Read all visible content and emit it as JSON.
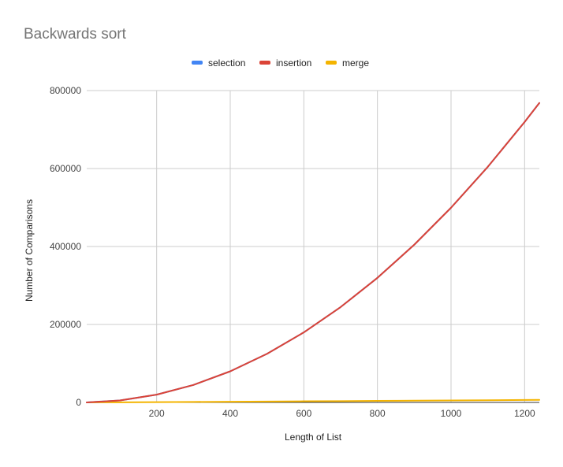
{
  "chart_data": {
    "type": "line",
    "title": "Backwards sort",
    "xlabel": "Length of List",
    "ylabel": "Number of Comparisons",
    "xlim": [
      10,
      1240
    ],
    "ylim": [
      0,
      800000
    ],
    "x_ticks": [
      200,
      400,
      600,
      800,
      1000,
      1200
    ],
    "x_tick_labels": [
      "200",
      "400",
      "600",
      "800",
      "1000",
      "1200"
    ],
    "y_ticks": [
      0,
      200000,
      400000,
      600000,
      800000
    ],
    "y_tick_labels": [
      "0",
      "200000",
      "400000",
      "600000",
      "800000"
    ],
    "grid": true,
    "legend_position": "top",
    "x": [
      10,
      100,
      200,
      300,
      400,
      500,
      600,
      700,
      800,
      900,
      1000,
      1100,
      1200,
      1240
    ],
    "series": [
      {
        "name": "selection",
        "color": "#4285f4",
        "values": [
          45,
          4950,
          19900,
          44850,
          79800,
          124750,
          179700,
          244650,
          319600,
          404550,
          499500,
          604450,
          719400,
          768180
        ]
      },
      {
        "name": "insertion",
        "color": "#db4437",
        "values": [
          45,
          4950,
          19900,
          44850,
          79800,
          124750,
          179700,
          244650,
          319600,
          404550,
          499500,
          604450,
          719400,
          768180
        ]
      },
      {
        "name": "merge",
        "color": "#f4b400",
        "values": [
          15,
          320,
          800,
          1300,
          1800,
          2300,
          2900,
          3400,
          4000,
          4500,
          5000,
          5600,
          6200,
          6500
        ]
      }
    ]
  }
}
